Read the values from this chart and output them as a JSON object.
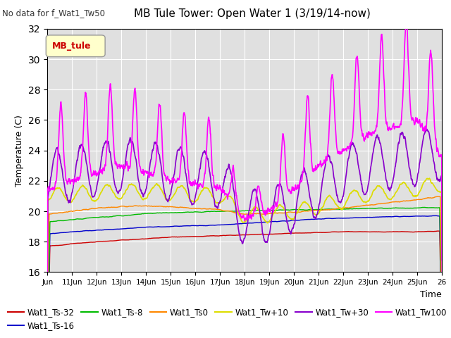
{
  "title": "MB Tule Tower: Open Water 1 (3/19/14-now)",
  "subtitle": "No data for f_Wat1_Tw50",
  "xlabel": "Time",
  "ylabel": "Temperature (C)",
  "ylim": [
    16,
    32
  ],
  "yticks": [
    16,
    18,
    20,
    22,
    24,
    26,
    28,
    30,
    32
  ],
  "n_days": 16,
  "legend_label": "MB_tule",
  "background_color": "#ffffff",
  "plot_bg_color": "#e0e0e0",
  "grid_color": "#ffffff",
  "series_colors": {
    "Wat1_Ts-32": "#cc0000",
    "Wat1_Ts-16": "#0000cc",
    "Wat1_Ts-8": "#00bb00",
    "Wat1_Ts0": "#ff8800",
    "Wat1_Tw+10": "#dddd00",
    "Wat1_Tw+30": "#8800cc",
    "Wat1_Tw100": "#ff00ff"
  }
}
